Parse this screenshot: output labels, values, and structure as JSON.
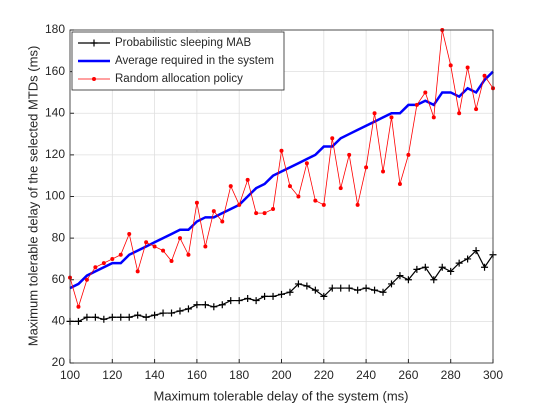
{
  "chart_data": {
    "type": "line",
    "x_label": "Maximum tolerable delay of the system (ms)",
    "y_label": "Maximum tolerable delay of the selected MTDs (ms)",
    "x": [
      100,
      104,
      108,
      112,
      116,
      120,
      124,
      128,
      132,
      136,
      140,
      144,
      148,
      152,
      156,
      160,
      164,
      168,
      172,
      176,
      180,
      184,
      188,
      192,
      196,
      200,
      204,
      208,
      212,
      216,
      220,
      224,
      228,
      232,
      236,
      240,
      244,
      248,
      252,
      256,
      260,
      264,
      268,
      272,
      276,
      280,
      284,
      288,
      292,
      296,
      300
    ],
    "series": [
      {
        "name": "Probabilistic sleeping MAB",
        "color": "#000000",
        "marker": "plus",
        "values": [
          40,
          40,
          42,
          42,
          41,
          42,
          42,
          42,
          43,
          42,
          43,
          44,
          44,
          45,
          46,
          48,
          48,
          47,
          48,
          50,
          50,
          51,
          50,
          52,
          52,
          53,
          54,
          58,
          57,
          55,
          52,
          56,
          56,
          56,
          55,
          56,
          55,
          54,
          58,
          62,
          60,
          65,
          66,
          60,
          66,
          64,
          68,
          70,
          74,
          66,
          72
        ]
      },
      {
        "name": "Average required in the system",
        "color": "#0000ff",
        "marker": "none",
        "values": [
          56,
          58,
          62,
          64,
          66,
          68,
          68,
          72,
          74,
          76,
          78,
          80,
          82,
          84,
          84,
          88,
          90,
          90,
          92,
          94,
          96,
          100,
          104,
          106,
          110,
          112,
          114,
          116,
          118,
          120,
          124,
          124,
          128,
          130,
          132,
          134,
          136,
          138,
          140,
          140,
          144,
          144,
          146,
          144,
          150,
          150,
          148,
          152,
          150,
          156,
          160
        ]
      },
      {
        "name": "Random allocation policy",
        "color": "#ff0000",
        "marker": "dot",
        "values": [
          61,
          47,
          60,
          66,
          68,
          70,
          72,
          82,
          64,
          78,
          76,
          74,
          69,
          80,
          72,
          97,
          76,
          93,
          88,
          105,
          96,
          108,
          92,
          92,
          94,
          122,
          105,
          100,
          116,
          98,
          96,
          128,
          104,
          120,
          96,
          114,
          140,
          112,
          138,
          106,
          120,
          144,
          150,
          138,
          180,
          163,
          140,
          162,
          142,
          158,
          152
        ]
      }
    ],
    "xlim": [
      100,
      300
    ],
    "xticks": [
      100,
      120,
      140,
      160,
      180,
      200,
      220,
      240,
      260,
      280,
      300
    ],
    "ylim": [
      20,
      180
    ],
    "yticks": [
      20,
      40,
      60,
      80,
      100,
      120,
      140,
      160,
      180
    ],
    "grid": true,
    "legend": "upper left"
  }
}
